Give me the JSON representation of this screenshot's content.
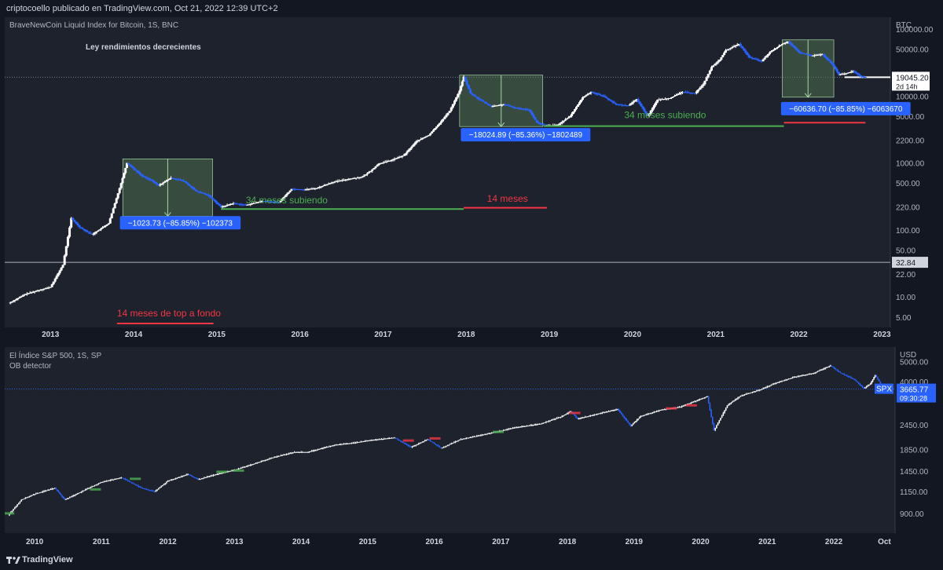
{
  "header": {
    "attribution": "criptocoello publicado en TradingView.com, Oct 21, 2022 12:39 UTC+2"
  },
  "footer": {
    "brand": "TradingView"
  },
  "chart_data": [
    {
      "type": "candlestick",
      "title": "BraveNewCoin Liquid Index for Bitcoin, 1S, BNC",
      "annotation_title": "Ley rendimientos decrecientes",
      "currency": "BTC",
      "y_scale": "log",
      "ylim": [
        3.5,
        150000
      ],
      "y_ticks": [
        "100000.00",
        "50000.00",
        "20000.00",
        "10000.00",
        "5000.00",
        "2200.00",
        "1000.00",
        "500.00",
        "220.00",
        "100.00",
        "50.00",
        "22.00",
        "10.00",
        "5.00"
      ],
      "y_tick_values": [
        100000,
        50000,
        20000,
        10000,
        5000,
        2200,
        1000,
        500,
        220,
        100,
        50,
        22,
        10,
        5
      ],
      "x_ticks": [
        "2013",
        "2014",
        "2015",
        "2016",
        "2017",
        "2018",
        "2019",
        "2020",
        "2021",
        "2022",
        "2023"
      ],
      "xlim": [
        2012.45,
        2023.1
      ],
      "last_price": "19045.20",
      "countdown": "2d 14h",
      "level_line_label": "32.84",
      "level_line_value": 32.84,
      "top_line_value": 19045.2,
      "price_path": [
        [
          2012.5,
          8
        ],
        [
          2012.7,
          11
        ],
        [
          2012.9,
          13
        ],
        [
          2013.0,
          14
        ],
        [
          2013.15,
          30
        ],
        [
          2013.25,
          150
        ],
        [
          2013.35,
          110
        ],
        [
          2013.5,
          85
        ],
        [
          2013.7,
          125
        ],
        [
          2013.85,
          500
        ],
        [
          2013.92,
          1000
        ],
        [
          2014.0,
          820
        ],
        [
          2014.1,
          640
        ],
        [
          2014.2,
          560
        ],
        [
          2014.3,
          460
        ],
        [
          2014.45,
          600
        ],
        [
          2014.6,
          540
        ],
        [
          2014.75,
          380
        ],
        [
          2014.9,
          330
        ],
        [
          2015.05,
          220
        ],
        [
          2015.2,
          250
        ],
        [
          2015.35,
          235
        ],
        [
          2015.55,
          270
        ],
        [
          2015.75,
          260
        ],
        [
          2015.9,
          410
        ],
        [
          2016.05,
          400
        ],
        [
          2016.2,
          420
        ],
        [
          2016.4,
          520
        ],
        [
          2016.6,
          580
        ],
        [
          2016.75,
          620
        ],
        [
          2016.85,
          760
        ],
        [
          2016.95,
          980
        ],
        [
          2017.1,
          1100
        ],
        [
          2017.25,
          1300
        ],
        [
          2017.4,
          2100
        ],
        [
          2017.55,
          2600
        ],
        [
          2017.7,
          4200
        ],
        [
          2017.8,
          6000
        ],
        [
          2017.92,
          12000
        ],
        [
          2017.97,
          19500
        ],
        [
          2018.05,
          11000
        ],
        [
          2018.15,
          9000
        ],
        [
          2018.3,
          7000
        ],
        [
          2018.45,
          7500
        ],
        [
          2018.6,
          6600
        ],
        [
          2018.75,
          6300
        ],
        [
          2018.85,
          4000
        ],
        [
          2018.95,
          3600
        ],
        [
          2019.1,
          3700
        ],
        [
          2019.25,
          5000
        ],
        [
          2019.4,
          9500
        ],
        [
          2019.5,
          11500
        ],
        [
          2019.65,
          10000
        ],
        [
          2019.8,
          7500
        ],
        [
          2019.95,
          7200
        ],
        [
          2020.05,
          9000
        ],
        [
          2020.18,
          5000
        ],
        [
          2020.3,
          8800
        ],
        [
          2020.45,
          9300
        ],
        [
          2020.6,
          11500
        ],
        [
          2020.75,
          11000
        ],
        [
          2020.85,
          15000
        ],
        [
          2020.95,
          27000
        ],
        [
          2021.05,
          35000
        ],
        [
          2021.12,
          48000
        ],
        [
          2021.28,
          60000
        ],
        [
          2021.4,
          38000
        ],
        [
          2021.55,
          33000
        ],
        [
          2021.65,
          45000
        ],
        [
          2021.8,
          60000
        ],
        [
          2021.87,
          65000
        ],
        [
          2022.0,
          45000
        ],
        [
          2022.15,
          40000
        ],
        [
          2022.28,
          42000
        ],
        [
          2022.4,
          30000
        ],
        [
          2022.48,
          21000
        ],
        [
          2022.55,
          21500
        ],
        [
          2022.65,
          23500
        ],
        [
          2022.75,
          19500
        ],
        [
          2022.8,
          19100
        ]
      ],
      "annotations": [
        {
          "id": "box1",
          "x0": 2013.87,
          "x1": 2014.95,
          "ytop": 1150,
          "ybot": 160,
          "label": "−1023.73 (−85.85%) −102373",
          "lx": 2014.1,
          "ly": 126
        },
        {
          "id": "box2",
          "x0": 2017.92,
          "x1": 2018.92,
          "ytop": 20500,
          "ybot": 3500,
          "label": "−18024.89 (−85.36%) −1802489",
          "lx": 2018.2,
          "ly": 2600
        },
        {
          "id": "box3",
          "x0": 2021.8,
          "x1": 2022.42,
          "ytop": 69000,
          "ybot": 9600,
          "label": "−60636.70 (−85.85%) −6063670",
          "lx": 2022.05,
          "ly": 6400
        }
      ],
      "lines": [
        {
          "color": "#4caf50",
          "x0": 2015.05,
          "x1": 2017.97,
          "y": 205,
          "label": "34 meses subiendo",
          "lx": 2015.35,
          "ly": 250
        },
        {
          "color": "#f23645",
          "x0": 2017.97,
          "x1": 2018.97,
          "y": 214,
          "label": "14 meses",
          "lx": 2018.25,
          "ly": 265
        },
        {
          "color": "#4caf50",
          "x0": 2018.93,
          "x1": 2021.82,
          "y": 3550,
          "label": "34 meses subiendo",
          "lx": 2019.9,
          "ly": 4700
        },
        {
          "color": "#f23645",
          "x0": 2021.82,
          "x1": 2022.8,
          "y": 4000,
          "label": "",
          "lx": 0,
          "ly": 0
        },
        {
          "color": "#f23645",
          "x0": 2013.8,
          "x1": 2014.96,
          "y": 4.0,
          "label": "14 meses de top a fondo",
          "lx": 2013.8,
          "ly": 5.1
        }
      ],
      "colors": {
        "up": "#ffffff",
        "down": "#2962ff",
        "box": "#4e6e4e",
        "box_stroke": "#a5d6a7",
        "label_bg": "#2962ff"
      }
    },
    {
      "type": "candlestick",
      "title": "El Índice S&P 500, 1S, SP",
      "indicator": "OB detector",
      "currency": "USD",
      "y_scale": "log",
      "ylim": [
        720,
        5900
      ],
      "y_ticks": [
        "5000.00",
        "4000.00",
        "2450.00",
        "1850.00",
        "1450.00",
        "1150.00",
        "900.00"
      ],
      "y_tick_values": [
        5000,
        4000,
        2450,
        1850,
        1450,
        1150,
        900
      ],
      "x_ticks": [
        "2010",
        "2011",
        "2012",
        "2013",
        "2014",
        "2015",
        "2016",
        "2017",
        "2018",
        "2019",
        "2020",
        "2021",
        "2022",
        "Oct"
      ],
      "x_tick_values": [
        2010,
        2011,
        2012,
        2013,
        2014,
        2015,
        2016,
        2017,
        2018,
        2019,
        2020,
        2021,
        2022,
        2022.76
      ],
      "xlim": [
        2009.55,
        2022.92
      ],
      "symbol": "SPX",
      "last_price": "3665.77",
      "countdown": "09:30:28",
      "price_path": [
        [
          2009.6,
          880
        ],
        [
          2009.8,
          1050
        ],
        [
          2010.0,
          1120
        ],
        [
          2010.3,
          1200
        ],
        [
          2010.45,
          1050
        ],
        [
          2010.7,
          1150
        ],
        [
          2011.0,
          1280
        ],
        [
          2011.3,
          1350
        ],
        [
          2011.6,
          1200
        ],
        [
          2011.8,
          1150
        ],
        [
          2012.0,
          1300
        ],
        [
          2012.3,
          1400
        ],
        [
          2012.45,
          1320
        ],
        [
          2012.8,
          1420
        ],
        [
          2013.0,
          1470
        ],
        [
          2013.3,
          1580
        ],
        [
          2013.6,
          1700
        ],
        [
          2013.9,
          1800
        ],
        [
          2014.1,
          1800
        ],
        [
          2014.5,
          1950
        ],
        [
          2014.8,
          2000
        ],
        [
          2015.0,
          2050
        ],
        [
          2015.4,
          2120
        ],
        [
          2015.65,
          1900
        ],
        [
          2015.9,
          2080
        ],
        [
          2016.1,
          1880
        ],
        [
          2016.4,
          2080
        ],
        [
          2016.7,
          2180
        ],
        [
          2016.9,
          2250
        ],
        [
          2017.2,
          2370
        ],
        [
          2017.6,
          2480
        ],
        [
          2017.9,
          2680
        ],
        [
          2018.05,
          2850
        ],
        [
          2018.15,
          2620
        ],
        [
          2018.6,
          2850
        ],
        [
          2018.75,
          2920
        ],
        [
          2018.95,
          2420
        ],
        [
          2019.1,
          2700
        ],
        [
          2019.4,
          2900
        ],
        [
          2019.7,
          3000
        ],
        [
          2019.95,
          3230
        ],
        [
          2020.1,
          3380
        ],
        [
          2020.2,
          2300
        ],
        [
          2020.4,
          3050
        ],
        [
          2020.6,
          3400
        ],
        [
          2020.9,
          3650
        ],
        [
          2021.1,
          3900
        ],
        [
          2021.4,
          4200
        ],
        [
          2021.7,
          4400
        ],
        [
          2021.95,
          4780
        ],
        [
          2022.1,
          4400
        ],
        [
          2022.3,
          4100
        ],
        [
          2022.45,
          3700
        ],
        [
          2022.55,
          3900
        ],
        [
          2022.62,
          4300
        ],
        [
          2022.7,
          3900
        ],
        [
          2022.8,
          3666
        ]
      ],
      "dotted_line_value": 3665.77,
      "ob_markers": [
        {
          "x": 2009.6,
          "y": 900,
          "color": "#4caf50"
        },
        {
          "x": 2010.9,
          "y": 1180,
          "color": "#4caf50"
        },
        {
          "x": 2011.5,
          "y": 1330,
          "color": "#4caf50"
        },
        {
          "x": 2012.8,
          "y": 1440,
          "color": "#4caf50"
        },
        {
          "x": 2013.05,
          "y": 1460,
          "color": "#4caf50"
        },
        {
          "x": 2015.6,
          "y": 2050,
          "color": "#f23645"
        },
        {
          "x": 2016.0,
          "y": 2100,
          "color": "#f23645"
        },
        {
          "x": 2016.95,
          "y": 2260,
          "color": "#4caf50"
        },
        {
          "x": 2018.1,
          "y": 2800,
          "color": "#f23645"
        },
        {
          "x": 2019.55,
          "y": 2950,
          "color": "#f23645"
        },
        {
          "x": 2019.85,
          "y": 3050,
          "color": "#f23645"
        }
      ],
      "colors": {
        "up": "#ffffff",
        "down": "#2962ff",
        "symbol_bg": "#2962ff"
      }
    }
  ]
}
